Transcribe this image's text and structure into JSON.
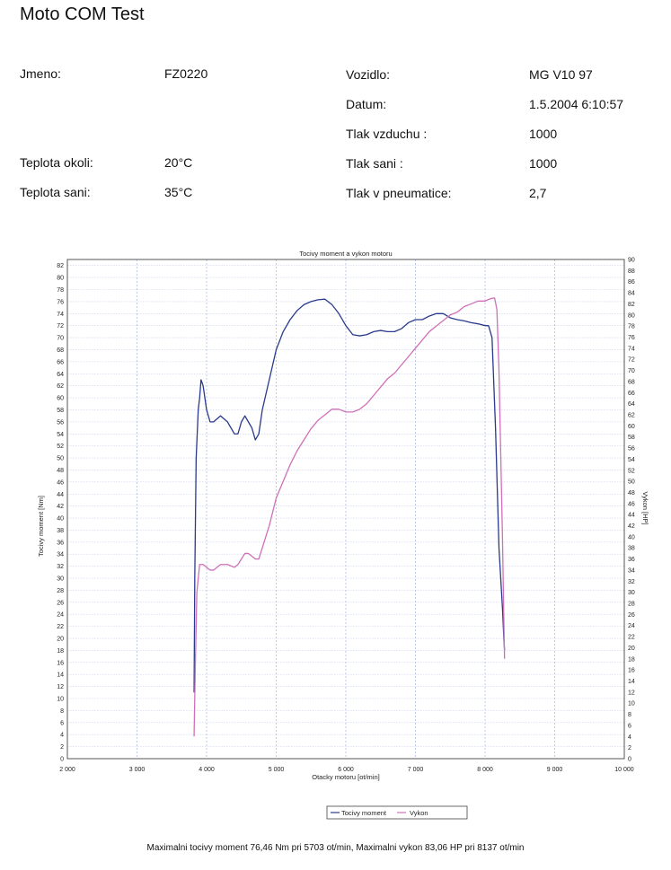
{
  "header": {
    "title": "Moto COM Test",
    "fields_left": [
      {
        "label": "Jmeno:",
        "value": "FZ0220"
      },
      {
        "label": "Teplota okoli:",
        "value": "20°C"
      },
      {
        "label": "Teplota sani:",
        "value": "35°C"
      }
    ],
    "fields_right": [
      {
        "label": "Vozidlo:",
        "value": "MG V10  97"
      },
      {
        "label": "Datum:",
        "value": "1.5.2004 6:10:57"
      },
      {
        "label": "Tlak vzduchu :",
        "value": "1000"
      },
      {
        "label": "Tlak sani :",
        "value": "1000"
      },
      {
        "label": "Tlak v pneumatice:",
        "value": "2,7"
      }
    ]
  },
  "chart_data": {
    "type": "line",
    "title": "Tocivy moment a vykon motoru",
    "xlabel": "Otacky motoru [ot/min]",
    "ylabel": "Tocivy moment [Nm]",
    "y2label": "Vykon [HP]",
    "xlim": [
      2000,
      10000
    ],
    "ylim": [
      0,
      83
    ],
    "y2lim": [
      0,
      90
    ],
    "x_ticks": [
      "2 000",
      "3 000",
      "4 000",
      "5 000",
      "6 000",
      "7 000",
      "8 000",
      "9 000",
      "10 000"
    ],
    "grid": true,
    "legend_position": "bottom-center",
    "series": [
      {
        "name": "Tocivy moment",
        "axis": "left",
        "color": "#2a3a8c",
        "x": [
          3820,
          3830,
          3850,
          3880,
          3900,
          3920,
          3950,
          4000,
          4050,
          4100,
          4200,
          4300,
          4400,
          4450,
          4500,
          4550,
          4600,
          4650,
          4700,
          4750,
          4800,
          4900,
          5000,
          5100,
          5200,
          5300,
          5400,
          5500,
          5600,
          5700,
          5800,
          5900,
          6000,
          6100,
          6200,
          6300,
          6400,
          6500,
          6600,
          6700,
          6800,
          6900,
          7000,
          7100,
          7200,
          7300,
          7400,
          7500,
          7600,
          7700,
          7800,
          7900,
          8000,
          8050,
          8100,
          8150,
          8200,
          8250,
          8270,
          8280
        ],
        "values": [
          11,
          30,
          50,
          58,
          60,
          63,
          62,
          58,
          56,
          56,
          57,
          56,
          54,
          54,
          56,
          57,
          56,
          55,
          53,
          54,
          58,
          63,
          68,
          71,
          73,
          74.5,
          75.5,
          76,
          76.3,
          76.4,
          75.5,
          74,
          72,
          70.5,
          70.3,
          70.5,
          71,
          71.2,
          71,
          71,
          71.5,
          72.5,
          73,
          73,
          73.6,
          74,
          74,
          73.3,
          73,
          72.8,
          72.5,
          72.3,
          72,
          72,
          70,
          55,
          35,
          25,
          20,
          18
        ]
      },
      {
        "name": "Vykon",
        "axis": "right",
        "color": "#d070b8",
        "x": [
          3820,
          3840,
          3860,
          3900,
          3950,
          4000,
          4050,
          4100,
          4200,
          4300,
          4400,
          4450,
          4500,
          4550,
          4600,
          4650,
          4700,
          4750,
          4800,
          4900,
          5000,
          5100,
          5200,
          5300,
          5400,
          5500,
          5600,
          5700,
          5800,
          5900,
          6000,
          6100,
          6200,
          6300,
          6400,
          6500,
          6600,
          6700,
          6800,
          6900,
          7000,
          7100,
          7200,
          7300,
          7400,
          7500,
          7600,
          7700,
          7800,
          7900,
          8000,
          8050,
          8100,
          8137,
          8170,
          8200,
          8250,
          8270,
          8280
        ],
        "values": [
          4,
          18,
          30,
          35,
          35,
          34.5,
          34,
          34,
          35,
          35,
          34.5,
          35,
          36,
          37,
          37,
          36.5,
          36,
          36,
          38,
          42,
          47,
          50,
          53,
          55.5,
          57.5,
          59.5,
          61,
          62,
          63,
          63,
          62.5,
          62.5,
          63,
          64,
          65.5,
          67,
          68.5,
          69.5,
          71,
          72.5,
          74,
          75.5,
          77,
          78,
          79,
          80,
          80.5,
          81.5,
          82,
          82.5,
          82.5,
          82.8,
          83,
          83.06,
          81,
          70,
          40,
          25,
          18
        ]
      }
    ],
    "caption": "Maximalni tocivy moment 76,46 Nm pri 5703 ot/min,  Maximalni vykon 83,06 HP pri 8137 ot/min"
  }
}
